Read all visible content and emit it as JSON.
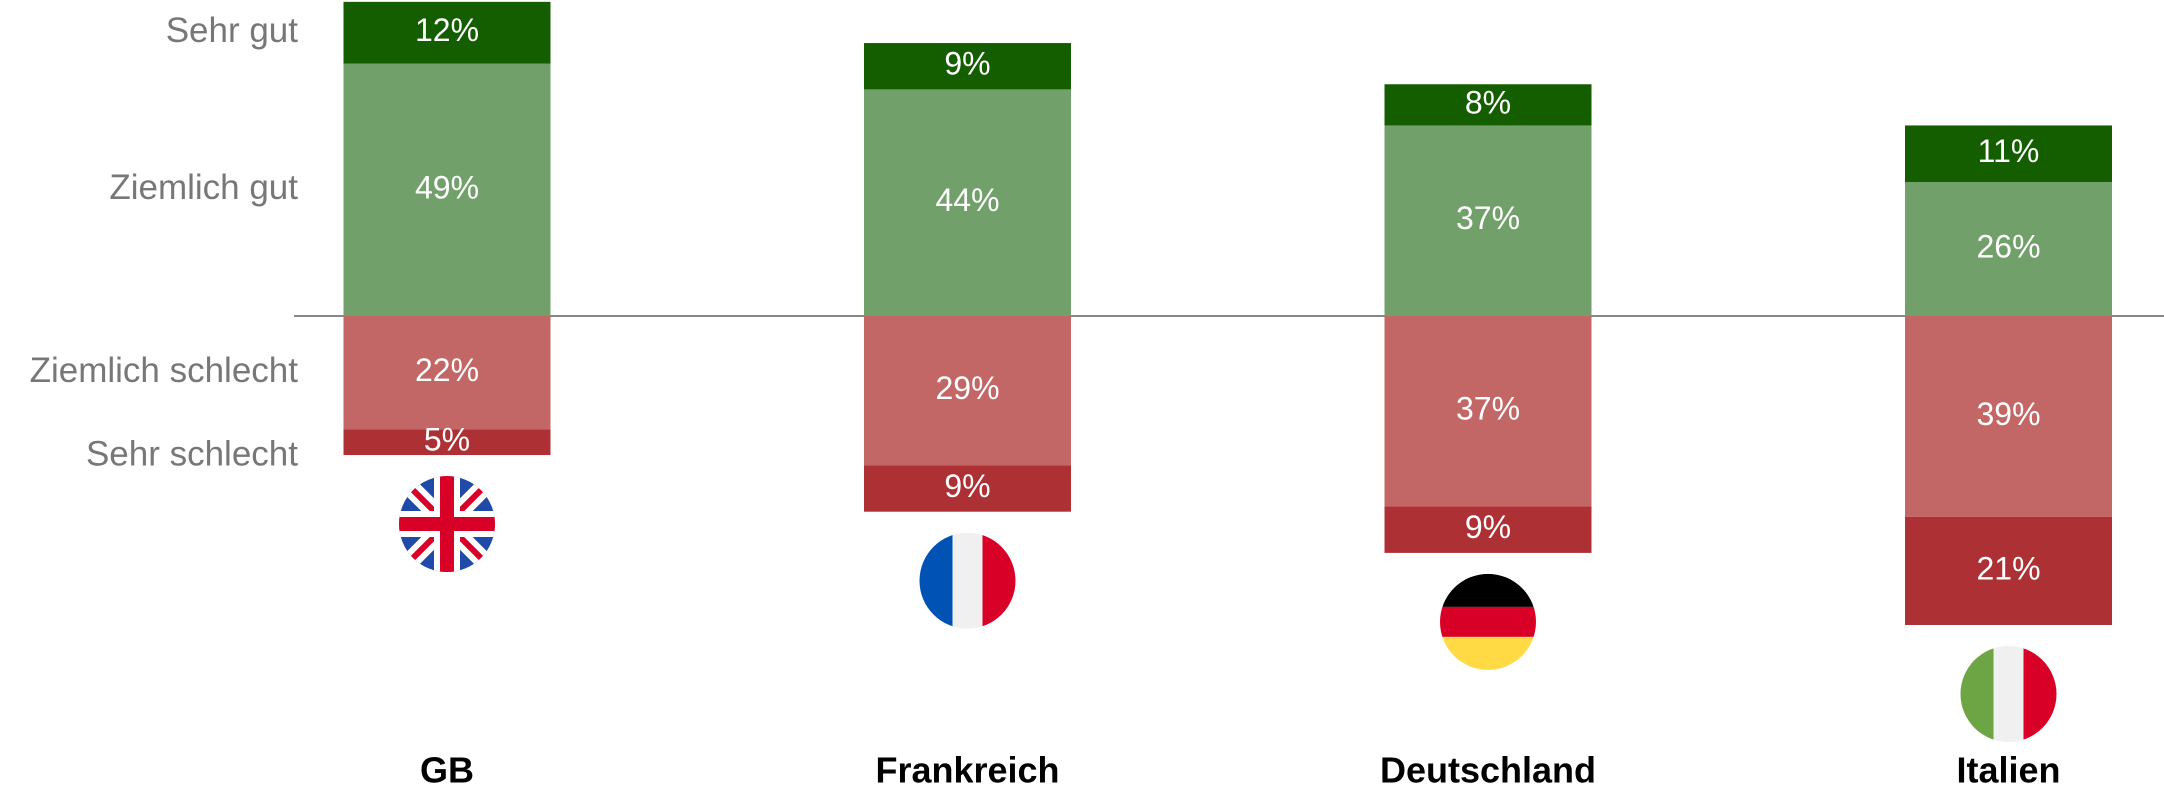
{
  "chart_data": {
    "type": "bar",
    "categories": [
      "GB",
      "Frankreich",
      "Deutschland",
      "Italien"
    ],
    "series": [
      {
        "name": "Sehr gut",
        "color": "#155e00",
        "values": [
          12,
          9,
          8,
          11
        ],
        "value_labels": [
          "12%",
          "9%",
          "8%",
          "11%"
        ]
      },
      {
        "name": "Ziemlich gut",
        "color": "#72a06a",
        "values": [
          49,
          44,
          37,
          26
        ],
        "value_labels": [
          "49%",
          "44%",
          "37%",
          "26%"
        ]
      },
      {
        "name": "Ziemlich schlecht",
        "color": "#c26666",
        "values": [
          22,
          29,
          37,
          39
        ],
        "value_labels": [
          "22%",
          "29%",
          "37%",
          "39%"
        ]
      },
      {
        "name": "Sehr schlecht",
        "color": "#ad3134",
        "values": [
          5,
          9,
          9,
          21
        ],
        "value_labels": [
          "5%",
          "9%",
          "9%",
          "21%"
        ]
      }
    ]
  }
}
